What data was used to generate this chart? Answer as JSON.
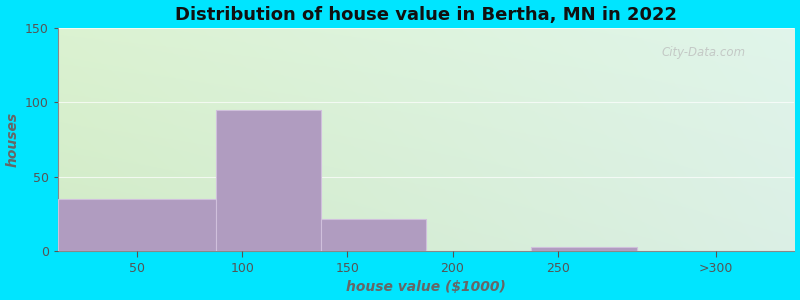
{
  "title": "Distribution of house value in Bertha, MN in 2022",
  "xlabel": "house value ($1000)",
  "ylabel": "houses",
  "bin_edges": [
    0,
    75,
    125,
    175,
    225,
    275,
    350
  ],
  "tick_positions": [
    37.5,
    87.5,
    137.5,
    187.5,
    237.5,
    312.5
  ],
  "tick_labels": [
    "50",
    "100",
    "150",
    "200",
    "250",
    ">300"
  ],
  "bar_heights": [
    35,
    95,
    22,
    0,
    3,
    0
  ],
  "bar_color": "#b09cc0",
  "bar_edge_color": "#d0c0dc",
  "ylim": [
    0,
    150
  ],
  "xlim": [
    0,
    350
  ],
  "yticks": [
    0,
    50,
    100,
    150
  ],
  "outer_bg": "#00e5ff",
  "watermark": "City-Data.com",
  "title_fontsize": 13,
  "label_fontsize": 10,
  "tick_fontsize": 9,
  "grad_color_topleft": [
    0.86,
    0.95,
    0.82,
    1.0
  ],
  "grad_color_topright": [
    0.88,
    0.96,
    0.92,
    1.0
  ],
  "grad_color_botleft": [
    0.82,
    0.92,
    0.78,
    1.0
  ],
  "grad_color_botright": [
    0.86,
    0.94,
    0.9,
    1.0
  ]
}
